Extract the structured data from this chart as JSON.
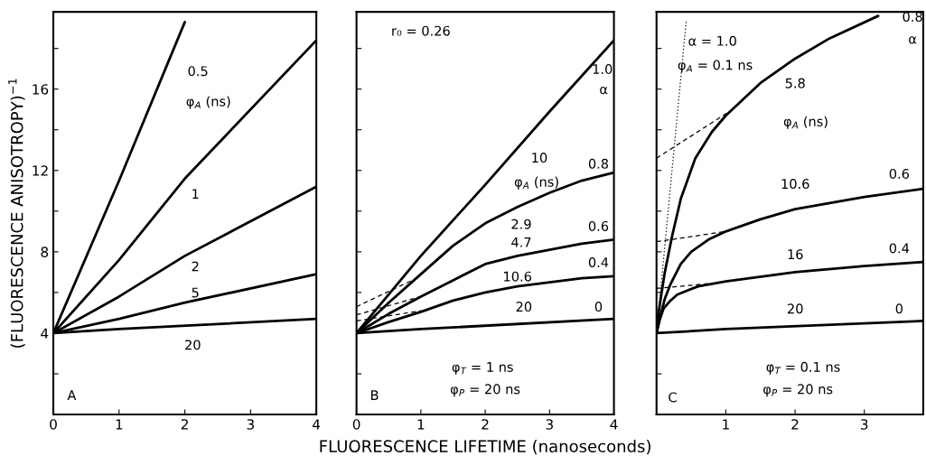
{
  "chart_data": [
    {
      "type": "line",
      "ylabel": "(FLUORESCENCE ANISOTROPY)$^{−1}$",
      "xlim": [
        0,
        4
      ],
      "ylim": [
        0,
        19.8
      ],
      "xticks": [
        0,
        1,
        2,
        3,
        4
      ],
      "yticks": [
        {
          "value": 2,
          "label": null
        },
        4,
        {
          "value": 6,
          "label": null
        },
        8,
        {
          "value": 10,
          "label": null
        },
        12,
        {
          "value": 14,
          "label": null
        },
        16,
        {
          "value": 18,
          "label": null
        }
      ],
      "series": [
        {
          "x": [
            0,
            1,
            2
          ],
          "values": [
            4,
            11.5,
            19.3
          ],
          "color": "#000000"
        },
        {
          "x": [
            0,
            1,
            2,
            4
          ],
          "values": [
            4,
            7.6,
            11.6,
            18.4
          ],
          "color": "#000000"
        },
        {
          "x": [
            0,
            1,
            2,
            4
          ],
          "values": [
            4,
            5.8,
            7.8,
            11.2
          ],
          "color": "#000000"
        },
        {
          "x": [
            0,
            1,
            2,
            4
          ],
          "values": [
            4,
            4.7,
            5.5,
            6.9
          ],
          "color": "#000000"
        },
        {
          "x": [
            0,
            1,
            4
          ],
          "values": [
            4,
            4.2,
            4.7
          ],
          "color": "#000000"
        }
      ],
      "annotations": [
        "0.5",
        "φ$_{A}$ (ns)",
        "1",
        "2",
        "5",
        "20",
        "A"
      ]
    },
    {
      "type": "line",
      "xlabel": "FLUORESCENCE LIFETIME (nanoseconds)",
      "xlim": [
        0,
        4
      ],
      "ylim": [
        0,
        19.8
      ],
      "xticks": [
        0,
        1,
        2,
        3,
        4
      ],
      "yticks": [
        {
          "value": 2,
          "label": null
        },
        {
          "value": 4,
          "label": null
        },
        {
          "value": 6,
          "label": null
        },
        {
          "value": 8,
          "label": null
        },
        {
          "value": 10,
          "label": null
        },
        {
          "value": 12,
          "label": null
        },
        {
          "value": 14,
          "label": null
        },
        {
          "value": 16,
          "label": null
        },
        {
          "value": 18,
          "label": null
        }
      ],
      "tick_labels": "x",
      "series": [
        {
          "x": [
            0,
            1,
            2,
            3,
            4
          ],
          "values": [
            4,
            7.8,
            11.3,
            14.9,
            18.4
          ],
          "color": "#000000"
        },
        {
          "x": [
            0,
            0.5,
            1,
            1.5,
            2,
            2.5,
            3,
            3.5,
            4
          ],
          "values": [
            4,
            5.5,
            6.9,
            8.3,
            9.4,
            10.2,
            10.9,
            11.5,
            11.9
          ],
          "color": "#000000"
        },
        {
          "x": [
            0,
            0.5,
            1,
            1.5,
            2,
            2.5,
            3,
            3.5,
            4
          ],
          "values": [
            4,
            4.95,
            5.8,
            6.6,
            7.4,
            7.8,
            8.1,
            8.4,
            8.6
          ],
          "color": "#000000"
        },
        {
          "x": [
            0,
            0.5,
            1,
            1.5,
            2,
            2.5,
            3,
            3.5,
            4
          ],
          "values": [
            4,
            4.55,
            5.05,
            5.6,
            6.0,
            6.3,
            6.5,
            6.7,
            6.8
          ],
          "color": "#000000"
        },
        {
          "x": [
            0,
            1,
            4
          ],
          "values": [
            4,
            4.2,
            4.7
          ],
          "color": "#000000"
        },
        {
          "x": [
            0,
            1
          ],
          "values": [
            5.3,
            6.8
          ],
          "color": "#000000",
          "line_style": "dashed"
        },
        {
          "x": [
            0,
            1
          ],
          "values": [
            4.9,
            5.8
          ],
          "color": "#000000",
          "line_style": "dashed"
        },
        {
          "x": [
            0,
            1
          ],
          "values": [
            4.6,
            5.1
          ],
          "color": "#000000",
          "line_style": "dashed"
        }
      ],
      "annotations": [
        "r₀ = 0.26",
        "1.0",
        "α",
        "10",
        "φ$_{A}$ (ns)",
        "2.9",
        "0.8",
        "4.7",
        "0.6",
        "10.6",
        "0.4",
        "20",
        "0",
        "φ$_{T}$ = 1 ns",
        "φ$_{P}$ = 20 ns",
        "B"
      ]
    },
    {
      "type": "line",
      "xlim": [
        0,
        3.85
      ],
      "ylim": [
        0,
        19.8
      ],
      "xticks": [
        1,
        2,
        3
      ],
      "yticks": [
        {
          "value": 2,
          "label": null
        },
        {
          "value": 4,
          "label": null
        },
        {
          "value": 6,
          "label": null
        },
        {
          "value": 8,
          "label": null
        },
        {
          "value": 10,
          "label": null
        },
        {
          "value": 12,
          "label": null
        },
        {
          "value": 14,
          "label": null
        },
        {
          "value": 16,
          "label": null
        },
        {
          "value": 18,
          "label": null
        }
      ],
      "tick_labels": "x",
      "series": [
        {
          "x": [
            0,
            0.03,
            0.06,
            0.12,
            0.22,
            0.35,
            0.56,
            0.8,
            1,
            1.5,
            2,
            2.5,
            3.2
          ],
          "values": [
            4,
            5.0,
            5.7,
            7.0,
            8.7,
            10.6,
            12.6,
            13.9,
            14.7,
            16.3,
            17.5,
            18.5,
            19.6
          ],
          "color": "#000000"
        },
        {
          "x": [
            0,
            0.03,
            0.06,
            0.12,
            0.2,
            0.35,
            0.5,
            0.75,
            1,
            1.5,
            2,
            3,
            3.85
          ],
          "values": [
            4,
            4.5,
            4.9,
            5.7,
            6.4,
            7.4,
            8.0,
            8.6,
            9.0,
            9.6,
            10.1,
            10.7,
            11.1
          ],
          "color": "#000000"
        },
        {
          "x": [
            0,
            0.05,
            0.1,
            0.2,
            0.3,
            0.6,
            1,
            2,
            3,
            3.85
          ],
          "values": [
            4,
            4.7,
            5.2,
            5.6,
            5.9,
            6.3,
            6.55,
            7.0,
            7.3,
            7.5
          ],
          "color": "#000000"
        },
        {
          "x": [
            0,
            1,
            3.85
          ],
          "values": [
            4,
            4.2,
            4.6
          ],
          "color": "#000000"
        },
        {
          "x": [
            0,
            1.05
          ],
          "values": [
            12.6,
            14.9
          ],
          "color": "#000000",
          "line_style": "dashed"
        },
        {
          "x": [
            0,
            1
          ],
          "values": [
            8.5,
            9.0
          ],
          "color": "#000000",
          "line_style": "dashed"
        },
        {
          "x": [
            0,
            0.8
          ],
          "values": [
            6.2,
            6.45
          ],
          "color": "#000000",
          "line_style": "dashed"
        },
        {
          "x": [
            0,
            0.43
          ],
          "values": [
            4,
            19.4
          ],
          "color": "#000000",
          "line_style": "dotted"
        }
      ],
      "annotations": [
        "α = 1.0",
        "φ$_{A}$ = 0.1 ns",
        "0.8",
        "α",
        "5.8",
        "φ$_{A}$ (ns)",
        "10.6",
        "0.6",
        "16",
        "0.4",
        "20",
        "0",
        "φ$_{T}$ = 0.1 ns",
        "φ$_{P}$ = 20 ns",
        "C"
      ]
    }
  ]
}
